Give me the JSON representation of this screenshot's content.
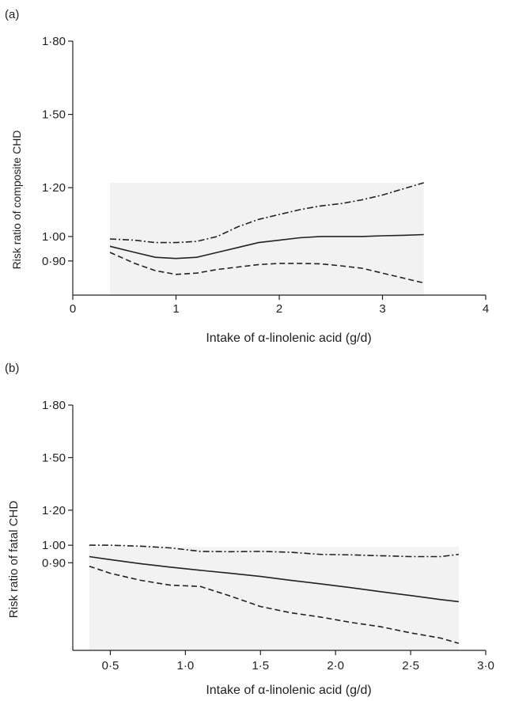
{
  "chart_data": [
    {
      "panel_label": "(a)",
      "type": "line",
      "xlabel": "Intake of α-linolenic acid (g/d)",
      "ylabel": "Risk ratio of composite CHD",
      "xlim": [
        0,
        4
      ],
      "ylim": [
        0.76,
        1.8
      ],
      "xticks": [
        0,
        1,
        2,
        3,
        4
      ],
      "xtick_labels": [
        "0",
        "1",
        "2",
        "3",
        "4"
      ],
      "yticks": [
        0.9,
        1.0,
        1.2,
        1.5,
        1.8
      ],
      "ytick_labels": [
        "0·90",
        "1·00",
        "1·20",
        "1·50",
        "1·80"
      ],
      "shaded_x_range": [
        0.36,
        3.4
      ],
      "shaded_y_top": 1.22,
      "series": [
        {
          "style": "dash-dot",
          "x": [
            0.36,
            0.6,
            0.8,
            1.0,
            1.2,
            1.4,
            1.6,
            1.8,
            2.0,
            2.2,
            2.4,
            2.6,
            2.8,
            3.0,
            3.2,
            3.4
          ],
          "y": [
            0.99,
            0.985,
            0.975,
            0.975,
            0.98,
            1.0,
            1.04,
            1.07,
            1.09,
            1.11,
            1.125,
            1.135,
            1.15,
            1.17,
            1.195,
            1.22
          ]
        },
        {
          "style": "solid",
          "x": [
            0.36,
            0.6,
            0.8,
            1.0,
            1.2,
            1.4,
            1.6,
            1.8,
            2.0,
            2.2,
            2.4,
            2.6,
            2.8,
            3.0,
            3.2,
            3.4
          ],
          "y": [
            0.96,
            0.935,
            0.915,
            0.91,
            0.915,
            0.935,
            0.955,
            0.975,
            0.985,
            0.995,
            1.0,
            1.0,
            1.0,
            1.003,
            1.005,
            1.008
          ]
        },
        {
          "style": "dashed",
          "x": [
            0.36,
            0.6,
            0.8,
            1.0,
            1.2,
            1.4,
            1.6,
            1.8,
            2.0,
            2.2,
            2.4,
            2.6,
            2.8,
            3.0,
            3.2,
            3.4
          ],
          "y": [
            0.935,
            0.89,
            0.86,
            0.845,
            0.85,
            0.865,
            0.875,
            0.885,
            0.89,
            0.89,
            0.888,
            0.88,
            0.87,
            0.85,
            0.83,
            0.81
          ]
        }
      ]
    },
    {
      "panel_label": "(b)",
      "type": "line",
      "xlabel": "Intake of α-linolenic acid (g/d)",
      "ylabel": "Risk ratio of fatal CHD",
      "xlim": [
        0.25,
        3.0
      ],
      "ylim": [
        0.4,
        1.8
      ],
      "xticks": [
        0.5,
        1.0,
        1.5,
        2.0,
        2.5,
        3.0
      ],
      "xtick_labels": [
        "0·5",
        "1·0",
        "1·5",
        "2·0",
        "2·5",
        "3·0"
      ],
      "yticks": [
        0.9,
        1.0,
        1.2,
        1.5,
        1.8
      ],
      "ytick_labels": [
        "0·90",
        "1·00",
        "1·20",
        "1·50",
        "1·80"
      ],
      "shaded_x_range": [
        0.36,
        2.82
      ],
      "shaded_y_top": 0.99,
      "series": [
        {
          "style": "dash-dot",
          "x": [
            0.36,
            0.5,
            0.7,
            0.9,
            1.1,
            1.3,
            1.5,
            1.7,
            1.9,
            2.1,
            2.3,
            2.5,
            2.7,
            2.82
          ],
          "y": [
            1.0,
            1.0,
            0.995,
            0.985,
            0.965,
            0.963,
            0.965,
            0.96,
            0.948,
            0.945,
            0.94,
            0.935,
            0.935,
            0.948
          ]
        },
        {
          "style": "solid",
          "x": [
            0.36,
            0.5,
            0.7,
            0.9,
            1.1,
            1.3,
            1.5,
            1.7,
            1.9,
            2.1,
            2.3,
            2.5,
            2.7,
            2.82
          ],
          "y": [
            0.935,
            0.918,
            0.895,
            0.875,
            0.857,
            0.84,
            0.822,
            0.8,
            0.78,
            0.758,
            0.735,
            0.713,
            0.69,
            0.678
          ]
        },
        {
          "style": "dashed",
          "x": [
            0.36,
            0.5,
            0.7,
            0.9,
            1.1,
            1.3,
            1.5,
            1.7,
            1.9,
            2.1,
            2.3,
            2.5,
            2.7,
            2.82
          ],
          "y": [
            0.88,
            0.84,
            0.8,
            0.772,
            0.765,
            0.71,
            0.65,
            0.615,
            0.59,
            0.56,
            0.535,
            0.5,
            0.47,
            0.44
          ]
        }
      ]
    }
  ]
}
